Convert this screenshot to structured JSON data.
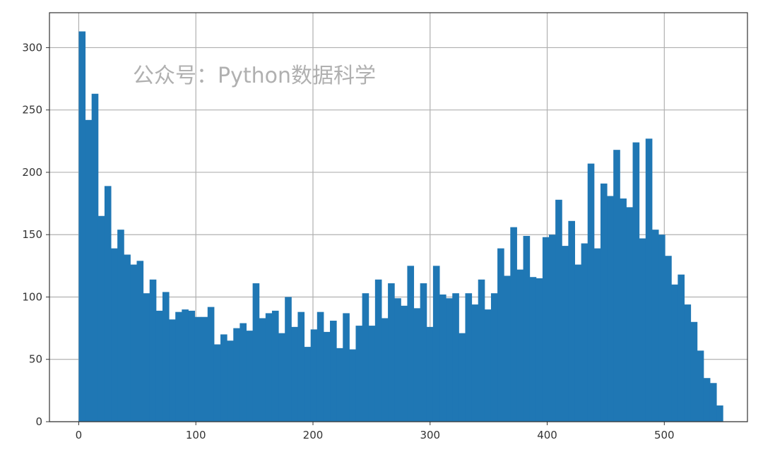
{
  "watermark": "公众号：Python数据科学",
  "chart_data": {
    "type": "bar",
    "subtype": "histogram",
    "bin_width": 5.5,
    "x_start": 0,
    "values": [
      313,
      242,
      263,
      165,
      189,
      139,
      154,
      134,
      126,
      129,
      103,
      114,
      89,
      104,
      82,
      88,
      90,
      89,
      84,
      84,
      92,
      62,
      70,
      65,
      75,
      79,
      73,
      111,
      83,
      87,
      89,
      71,
      100,
      76,
      88,
      60,
      74,
      88,
      72,
      81,
      59,
      87,
      58,
      77,
      103,
      77,
      114,
      83,
      111,
      99,
      93,
      125,
      91,
      111,
      76,
      125,
      102,
      99,
      103,
      71,
      103,
      94,
      114,
      90,
      103,
      139,
      117,
      156,
      122,
      149,
      116,
      115,
      148,
      150,
      178,
      141,
      161,
      126,
      143,
      207,
      139,
      191,
      181,
      218,
      179,
      172,
      224,
      147,
      227,
      154,
      150,
      133,
      110,
      118,
      94,
      80,
      57,
      35,
      31,
      13
    ],
    "xlim": [
      -25,
      571
    ],
    "ylim": [
      0,
      328
    ],
    "x_ticks": [
      0,
      100,
      200,
      300,
      400,
      500
    ],
    "y_ticks": [
      0,
      50,
      100,
      150,
      200,
      250,
      300
    ],
    "grid": true,
    "bar_color": "#1f77b4",
    "title": "",
    "xlabel": "",
    "ylabel": ""
  }
}
